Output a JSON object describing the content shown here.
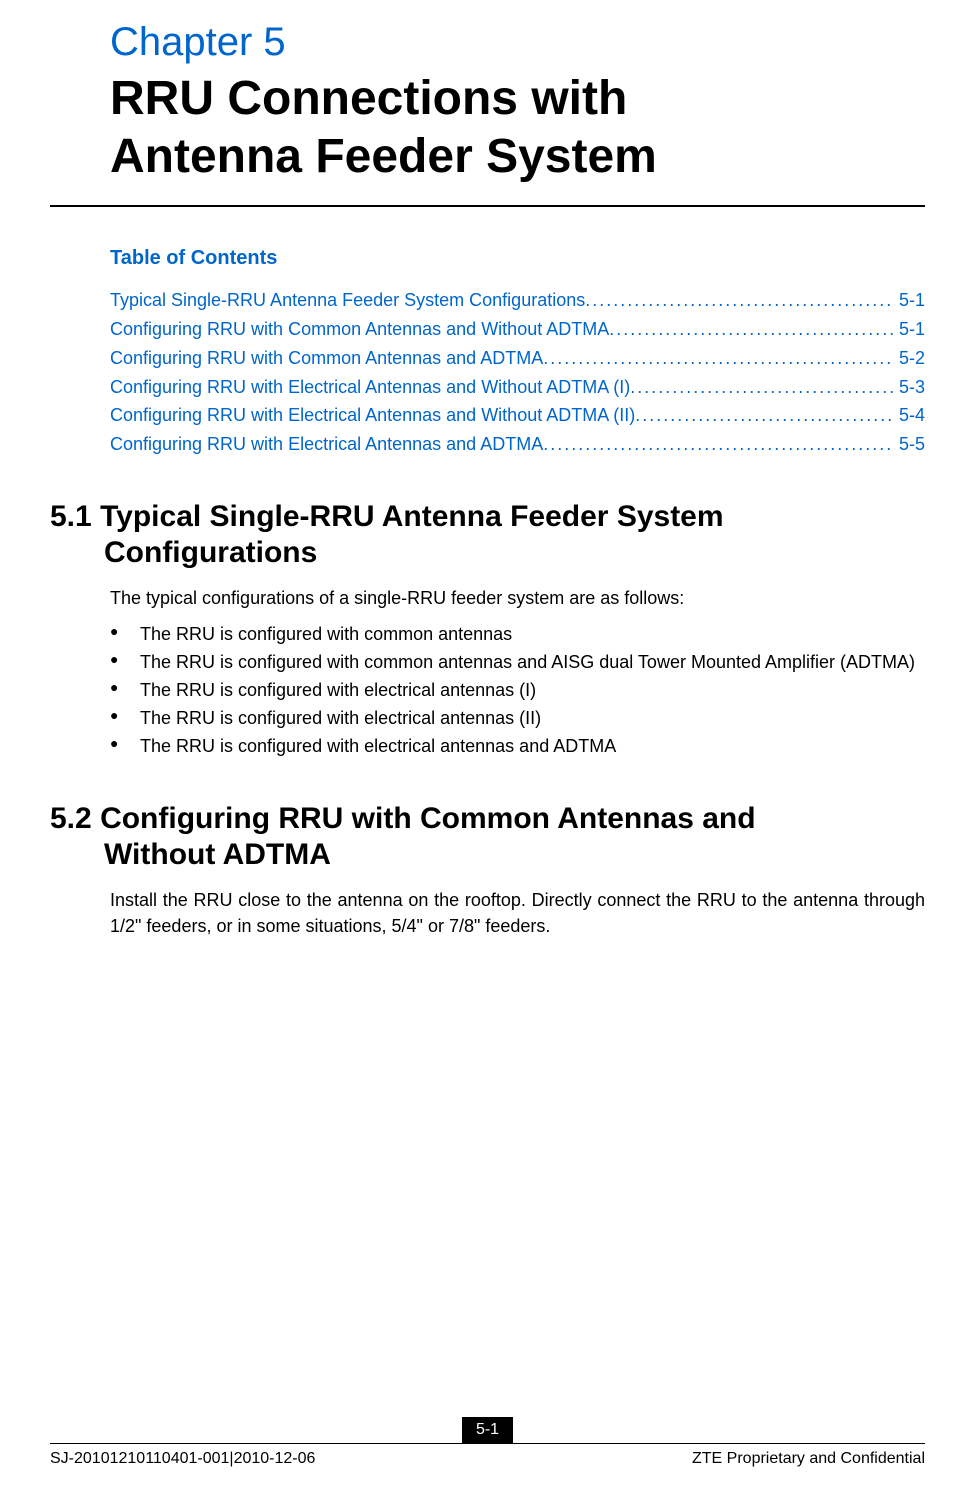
{
  "chapter": {
    "label": "Chapter 5",
    "title_line1": "RRU Connections with",
    "title_line2": "Antenna Feeder System"
  },
  "toc": {
    "heading": "Table of Contents",
    "items": [
      {
        "title": "Typical Single-RRU Antenna Feeder System Configurations",
        "page": "5-1"
      },
      {
        "title": "Configuring RRU with Common Antennas and Without ADTMA",
        "page": "5-1"
      },
      {
        "title": "Configuring RRU with Common Antennas and ADTMA",
        "page": "5-2"
      },
      {
        "title": "Configuring RRU with Electrical Antennas and Without ADTMA (I)",
        "page": "5-3"
      },
      {
        "title": "Configuring RRU with Electrical Antennas and Without ADTMA (II)",
        "page": "5-4"
      },
      {
        "title": "Configuring RRU with Electrical Antennas and ADTMA",
        "page": "5-5"
      }
    ]
  },
  "section_5_1": {
    "number": "5.1",
    "title_line1": "Typical Single-RRU Antenna Feeder System",
    "title_line2": "Configurations",
    "intro": "The typical configurations of a single-RRU feeder system are as follows:",
    "bullets": [
      "The RRU is configured with common antennas",
      "The RRU is configured with common antennas and AISG dual Tower Mounted Amplifier (ADTMA)",
      "The RRU is configured with electrical antennas (I)",
      "The RRU is configured with electrical antennas (II)",
      "The RRU is configured with electrical antennas and ADTMA"
    ]
  },
  "section_5_2": {
    "number": "5.2",
    "title_line1": "Configuring RRU with Common Antennas and",
    "title_line2": "Without ADTMA",
    "body": "Install the RRU close to the antenna on the rooftop.  Directly connect the RRU to the antenna through 1/2\" feeders, or in some situations, 5/4\" or 7/8\" feeders."
  },
  "footer": {
    "page_number": "5-1",
    "left": "SJ-20101210110401-001|2010-12-06",
    "right": "ZTE Proprietary and Confidential"
  }
}
